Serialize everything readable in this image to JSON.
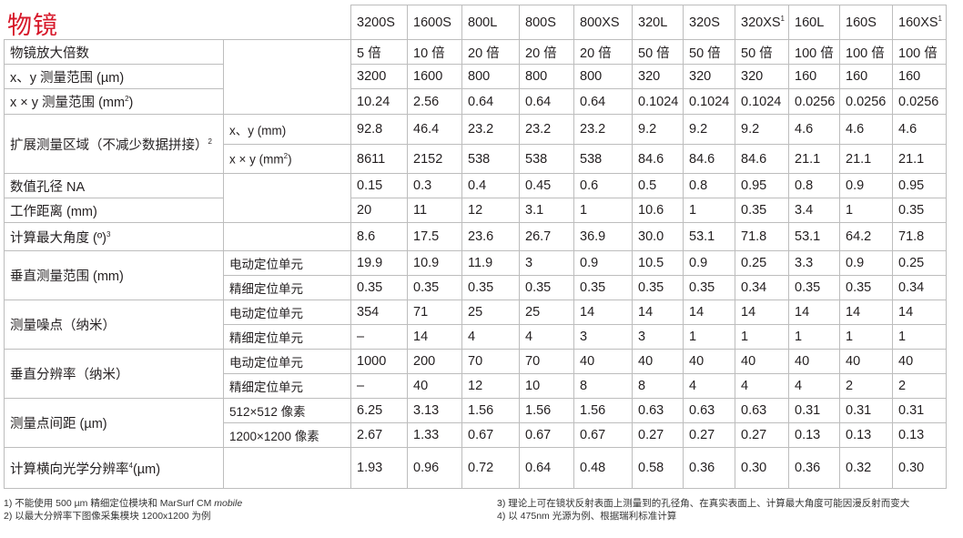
{
  "title": "物镜",
  "models": [
    "3200S",
    "1600S",
    "800L",
    "800S",
    "800XS",
    "320L",
    "320S",
    "320XS",
    "160L",
    "160S",
    "160XS"
  ],
  "model_marks": [
    "",
    "",
    "",
    "",
    "",
    "",
    "",
    "1",
    "",
    "",
    "1"
  ],
  "rows": {
    "mag": {
      "label": "物镜放大倍数",
      "values": [
        "5 倍",
        "10 倍",
        "20 倍",
        "20 倍",
        "20 倍",
        "50 倍",
        "50 倍",
        "50 倍",
        "100 倍",
        "100 倍",
        "100 倍"
      ]
    },
    "xy": {
      "label": "x、y 测量范围 (µm)",
      "values": [
        "3200",
        "1600",
        "800",
        "800",
        "800",
        "320",
        "320",
        "320",
        "160",
        "160",
        "160"
      ]
    },
    "xxy_label_pre": "x × y 测量范围 (mm",
    "xxy_label_sup": "2",
    "xxy_label_post": ")",
    "xxy_values": [
      "10.24",
      "2.56",
      "0.64",
      "0.64",
      "0.64",
      "0.1024",
      "0.1024",
      "0.1024",
      "0.0256",
      "0.0256",
      "0.0256"
    ],
    "ext_label": "扩展测量区域（不减少数据拼接）",
    "ext_label_sup": "2",
    "ext_xy": {
      "label": "x、y (mm)",
      "values": [
        "92.8",
        "46.4",
        "23.2",
        "23.2",
        "23.2",
        "9.2",
        "9.2",
        "9.2",
        "4.6",
        "4.6",
        "4.6"
      ]
    },
    "ext_xxy_pre": "x × y (mm",
    "ext_xxy_sup": "2",
    "ext_xxy_post": ")",
    "ext_xxy_values": [
      "8611",
      "2152",
      "538",
      "538",
      "538",
      "84.6",
      "84.6",
      "84.6",
      "21.1",
      "21.1",
      "21.1"
    ],
    "na": {
      "label": "数值孔径 NA",
      "values": [
        "0.15",
        "0.3",
        "0.4",
        "0.45",
        "0.6",
        "0.5",
        "0.8",
        "0.95",
        "0.8",
        "0.9",
        "0.95"
      ]
    },
    "wd": {
      "label": "工作距离 (mm)",
      "values": [
        "20",
        "11",
        "12",
        "3.1",
        "1",
        "10.6",
        "1",
        "0.35",
        "3.4",
        "1",
        "0.35"
      ]
    },
    "angle_label": "计算最大角度 (º)",
    "angle_sup": "3",
    "angle_values": [
      "8.6",
      "17.5",
      "23.6",
      "26.7",
      "36.9",
      "30.0",
      "53.1",
      "71.8",
      "53.1",
      "64.2",
      "71.8"
    ],
    "vrange": {
      "label": "垂直测量范围 (mm)",
      "a": {
        "label": "电动定位单元",
        "values": [
          "19.9",
          "10.9",
          "11.9",
          "3",
          "0.9",
          "10.5",
          "0.9",
          "0.25",
          "3.3",
          "0.9",
          "0.25"
        ]
      },
      "b": {
        "label": "精细定位单元",
        "values": [
          "0.35",
          "0.35",
          "0.35",
          "0.35",
          "0.35",
          "0.35",
          "0.35",
          "0.34",
          "0.35",
          "0.35",
          "0.34"
        ]
      }
    },
    "noise": {
      "label": "测量噪点（纳米）",
      "a": {
        "label": "电动定位单元",
        "values": [
          "354",
          "71",
          "25",
          "25",
          "14",
          "14",
          "14",
          "14",
          "14",
          "14",
          "14"
        ]
      },
      "b": {
        "label": "精细定位单元",
        "values": [
          "–",
          "14",
          "4",
          "4",
          "3",
          "3",
          "1",
          "1",
          "1",
          "1",
          "1"
        ]
      }
    },
    "vres": {
      "label": "垂直分辨率（纳米）",
      "a": {
        "label": "电动定位单元",
        "values": [
          "1000",
          "200",
          "70",
          "70",
          "40",
          "40",
          "40",
          "40",
          "40",
          "40",
          "40"
        ]
      },
      "b": {
        "label": "精细定位单元",
        "values": [
          "–",
          "40",
          "12",
          "10",
          "8",
          "8",
          "4",
          "4",
          "4",
          "2",
          "2"
        ]
      }
    },
    "spacing": {
      "label": "测量点间距 (µm)",
      "a": {
        "label": "512×512 像素",
        "values": [
          "6.25",
          "3.13",
          "1.56",
          "1.56",
          "1.56",
          "0.63",
          "0.63",
          "0.63",
          "0.31",
          "0.31",
          "0.31"
        ]
      },
      "b": {
        "label": "1200×1200 像素",
        "values": [
          "2.67",
          "1.33",
          "0.67",
          "0.67",
          "0.67",
          "0.27",
          "0.27",
          "0.27",
          "0.13",
          "0.13",
          "0.13"
        ]
      }
    },
    "lres_label": "计算横向光学分辨率",
    "lres_sup": "4",
    "lres_unit": "(µm)",
    "lres_values": [
      "1.93",
      "0.96",
      "0.72",
      "0.64",
      "0.48",
      "0.58",
      "0.36",
      "0.30",
      "0.36",
      "0.32",
      "0.30"
    ]
  },
  "footnotes": {
    "f1_pre": "1) 不能使用 500 µm 精细定位模块和 MarSurf CM ",
    "f1_em": "mobile",
    "f2": "2) 以最大分辨率下图像采集模块 1200x1200 为例",
    "f3": "3) 理论上可在镜状反射表面上测量到的孔径角、在真实表面上、计算最大角度可能因漫反射而变大",
    "f4": "4) 以 475nm 光源为例、根据瑞利标准计算"
  },
  "colors": {
    "title": "#d7182a",
    "rule": "#e30613",
    "grid": "#bdbdbd",
    "text": "#231f20"
  }
}
